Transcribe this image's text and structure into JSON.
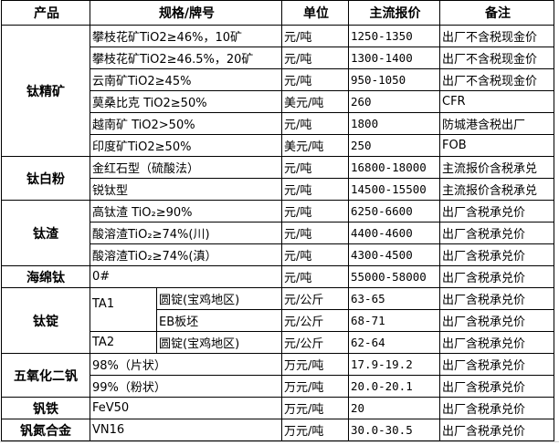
{
  "headers": [
    "产品",
    "规格/牌号",
    "单位",
    "主流报价",
    "备注"
  ],
  "groups": [
    {
      "product": "钛精矿",
      "rows": [
        {
          "spec": "攀枝花矿TiO2≥46%，10矿",
          "unit": "元/吨",
          "price": "1250-1350",
          "note": "出厂不含税现金价"
        },
        {
          "spec": "攀枝花矿TiO2≥46.5%，20矿",
          "unit": "元/吨",
          "price": "1300-1400",
          "note": "出厂不含税现金价"
        },
        {
          "spec": "云南矿TiO2≥45%",
          "unit": "元/吨",
          "price": "950-1050",
          "note": "出厂不含税现金价"
        },
        {
          "spec": "莫桑比克 TiO2≥50%",
          "unit": "美元/吨",
          "price": "260",
          "note": "CFR"
        },
        {
          "spec": "越南矿 TiO2>50%",
          "unit": "元/吨",
          "price": "1800",
          "note": "防城港含税出厂"
        },
        {
          "spec": "印度矿TiO2≥50%",
          "unit": "美元/吨",
          "price": "250",
          "note": "FOB"
        }
      ]
    },
    {
      "product": "钛白粉",
      "rows": [
        {
          "spec": "金红石型（硫酸法）",
          "unit": "元/吨",
          "price": "16800-18000",
          "note": "主流报价含税承兑"
        },
        {
          "spec": "锐钛型",
          "unit": "元/吨",
          "price": "14500-15500",
          "note": "主流报价含税承兑"
        }
      ]
    },
    {
      "product": "钛渣",
      "rows": [
        {
          "spec": "高钛渣 TiO₂≥90%",
          "unit": "元/吨",
          "price": "6250-6600",
          "note": "出厂含税承兑价"
        },
        {
          "spec": "酸溶渣TiO₂≥74%(川)",
          "unit": "元/吨",
          "price": "4400-4600",
          "note": "出厂含税承兑价"
        },
        {
          "spec": "酸溶渣TiO₂≥74%(滇）",
          "unit": "元/吨",
          "price": "4300-4500",
          "note": "出厂含税承兑价"
        }
      ]
    },
    {
      "product": "海绵钛",
      "rows": [
        {
          "spec": "0#",
          "unit": "元/吨",
          "price": "55000-58000",
          "note": "出厂含税承兑价"
        }
      ]
    },
    {
      "product": "钛锭",
      "rows": [
        {
          "grade": "TA1",
          "grade_span": 2,
          "spec": "圆锭(宝鸡地区)",
          "unit": "元/公斤",
          "price": "63-65",
          "note": "出厂含税承兑价"
        },
        {
          "spec": "EB板坯",
          "unit": "元/公斤",
          "price": "68-71",
          "note": "出厂含税承兑价"
        },
        {
          "grade": "TA2",
          "grade_span": 1,
          "spec": "圆锭(宝鸡地区)",
          "unit": "元/公斤",
          "price": "62-64",
          "note": "出厂含税承兑价"
        }
      ]
    },
    {
      "product": "五氧化二钒",
      "rows": [
        {
          "spec": "98%（片状）",
          "unit": "万元/吨",
          "price": "17.9-19.2",
          "note": "出厂含税承兑价"
        },
        {
          "spec": "99%（粉状）",
          "unit": "万元/吨",
          "price": "20.0-20.1",
          "note": "出厂含税承兑价"
        }
      ]
    },
    {
      "product": "钒铁",
      "rows": [
        {
          "spec": "FeV50",
          "unit": "万元/吨",
          "price": "20",
          "note": "出厂含税承兑价"
        }
      ]
    },
    {
      "product": "钒氮合金",
      "rows": [
        {
          "spec": "VN16",
          "unit": "万元/吨",
          "price": "30.0-30.5",
          "note": "出厂含税承兑价"
        }
      ]
    }
  ]
}
